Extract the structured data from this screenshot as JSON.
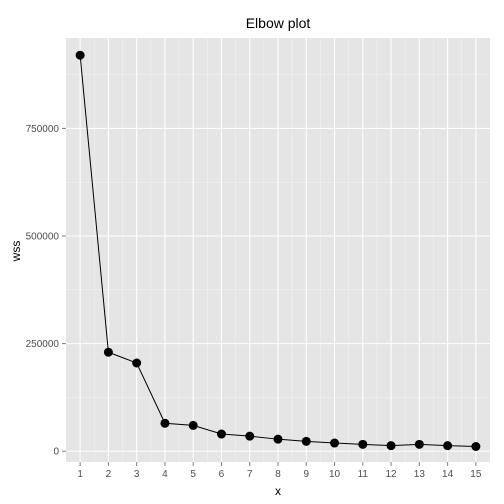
{
  "chart_data": {
    "type": "line",
    "title": "Elbow plot",
    "xlabel": "x",
    "ylabel": "wss",
    "x": [
      1,
      2,
      3,
      4,
      5,
      6,
      7,
      8,
      9,
      10,
      11,
      12,
      13,
      14,
      15
    ],
    "series": [
      {
        "values": [
          920000,
          230000,
          205000,
          65000,
          60000,
          40000,
          35000,
          28000,
          23000,
          19000,
          16000,
          13000,
          16000,
          13000,
          11000
        ]
      }
    ],
    "xlim": [
      0.5,
      15.5
    ],
    "ylim": [
      -25000,
      960000
    ],
    "x_ticks": [
      1,
      2,
      3,
      4,
      5,
      6,
      7,
      8,
      9,
      10,
      11,
      12,
      13,
      14,
      15
    ],
    "y_ticks": [
      0,
      250000,
      500000,
      750000
    ],
    "grid": true,
    "legend": "none",
    "colors": {
      "panel": "#e5e5e5",
      "grid_major": "#ffffff",
      "grid_minor": "#f2f2f2",
      "line": "#000000",
      "point": "#000000"
    }
  }
}
